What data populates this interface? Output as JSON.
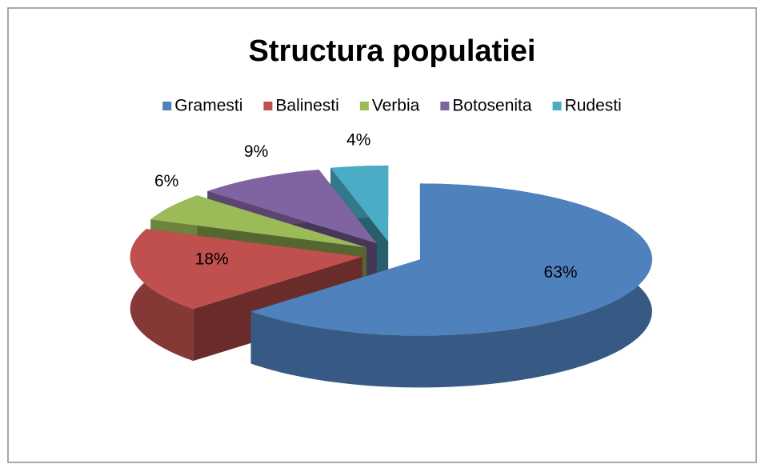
{
  "chart_data": {
    "type": "pie3d",
    "title": "Structura populatiei",
    "categories": [
      "Gramesti",
      "Balinesti",
      "Verbia",
      "Botosenita",
      "Rudesti"
    ],
    "values": [
      63,
      18,
      6,
      9,
      4
    ],
    "value_labels": [
      "63%",
      "18%",
      "6%",
      "9%",
      "4%"
    ],
    "colors": [
      "#4f81bd",
      "#c0504d",
      "#9bbb59",
      "#8064a2",
      "#4bacc6"
    ],
    "legend": "top"
  }
}
